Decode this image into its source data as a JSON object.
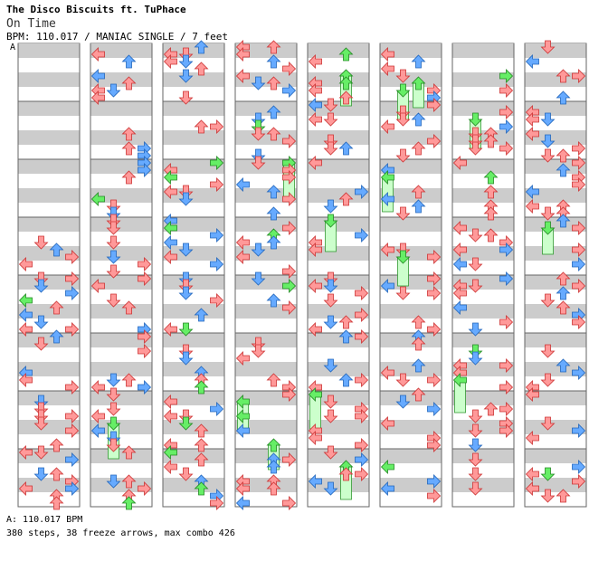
{
  "song": {
    "artist_line": "The Disco Biscuits ft. TuPhace",
    "title": "On Time",
    "info_line": "BPM: 110.017 / MANIAC SINGLE / 7 feet"
  },
  "marker_label": "A",
  "footer": {
    "bpm_line": "A: 110.017 BPM",
    "stats_line": "380 steps, 38 freeze arrows, max combo 426"
  },
  "colors": {
    "band_gray": "#cccccc",
    "border": "#666666",
    "red_arrow": "#ff9999",
    "blue_arrow": "#66aaff",
    "green_arrow": "#66ee66",
    "freeze_body": "#ccffcc"
  },
  "chart_data": {
    "type": "step-chart",
    "columns": 8,
    "measures_per_column": 8,
    "lanes": [
      "left",
      "down",
      "up",
      "right"
    ],
    "total_steps": 380,
    "freeze_arrows": 38,
    "max_combo": 426,
    "bpm": 110.017
  }
}
